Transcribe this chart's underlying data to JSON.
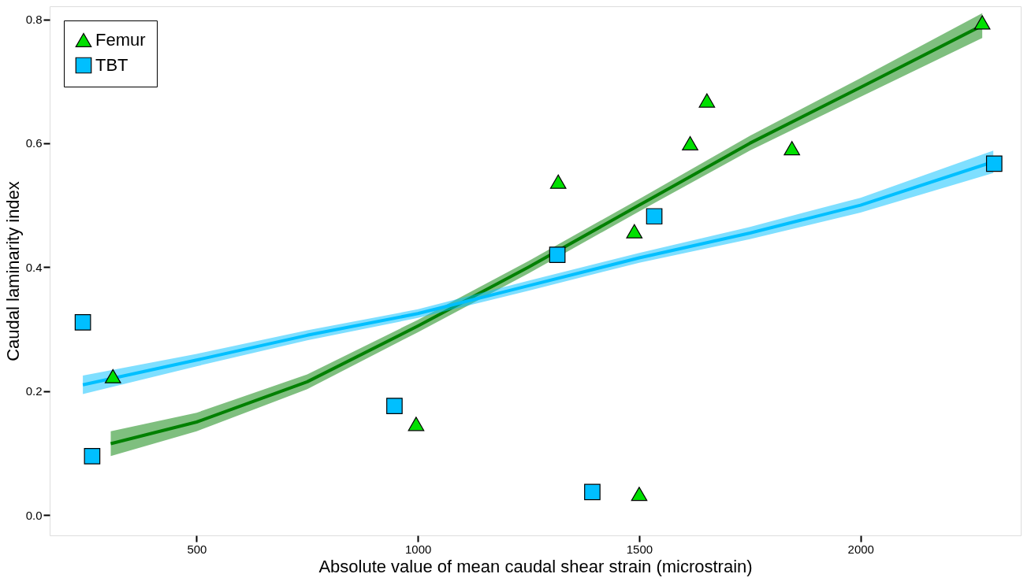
{
  "chart_data": {
    "type": "scatter",
    "xlabel": "Absolute value of mean caudal shear strain (microstrain)",
    "ylabel": "Caudal laminarity index",
    "xlim": [
      168,
      2362
    ],
    "ylim": [
      -0.033,
      0.821
    ],
    "xticks": [
      500,
      1000,
      1500,
      2000
    ],
    "yticks": [
      {
        "value": 0,
        "label": "0.0"
      },
      0.2,
      0.4,
      0.6,
      0.8
    ],
    "grid": false,
    "legend": "top left",
    "series": [
      {
        "name": "Femur",
        "marker": "triangle",
        "color": "#00e000",
        "x": [
          311,
          996,
          1317,
          1489,
          1500,
          1615,
          1653,
          1845,
          2275
        ],
        "values": [
          0.224,
          0.147,
          0.538,
          0.458,
          0.034,
          0.6,
          0.669,
          0.592,
          0.795
        ]
      },
      {
        "name": "TBT",
        "marker": "square",
        "color": "#00bfff",
        "x": [
          243,
          264,
          947,
          1315,
          1394,
          1534,
          2302
        ],
        "values": [
          0.311,
          0.095,
          0.176,
          0.42,
          0.037,
          0.482,
          0.567
        ]
      },
      {
        "type": "line",
        "color": "#008000",
        "x": [
          306,
          500,
          750,
          1000,
          1250,
          1500,
          1750,
          2000,
          2275
        ],
        "values": [
          0.115,
          0.15,
          0.215,
          0.305,
          0.4,
          0.5,
          0.6,
          0.69,
          0.79
        ],
        "lower": [
          0.095,
          0.135,
          0.203,
          0.295,
          0.39,
          0.49,
          0.588,
          0.675,
          0.77
        ],
        "upper": [
          0.135,
          0.165,
          0.227,
          0.315,
          0.41,
          0.51,
          0.612,
          0.705,
          0.81
        ]
      },
      {
        "type": "line",
        "color": "#00bfff",
        "x": [
          243,
          500,
          750,
          1000,
          1250,
          1500,
          1750,
          2000,
          2300
        ],
        "values": [
          0.21,
          0.25,
          0.29,
          0.325,
          0.37,
          0.415,
          0.455,
          0.5,
          0.57
        ],
        "lower": [
          0.195,
          0.24,
          0.282,
          0.318,
          0.362,
          0.407,
          0.445,
          0.488,
          0.552
        ],
        "upper": [
          0.225,
          0.26,
          0.298,
          0.332,
          0.378,
          0.423,
          0.465,
          0.512,
          0.588
        ]
      }
    ]
  }
}
